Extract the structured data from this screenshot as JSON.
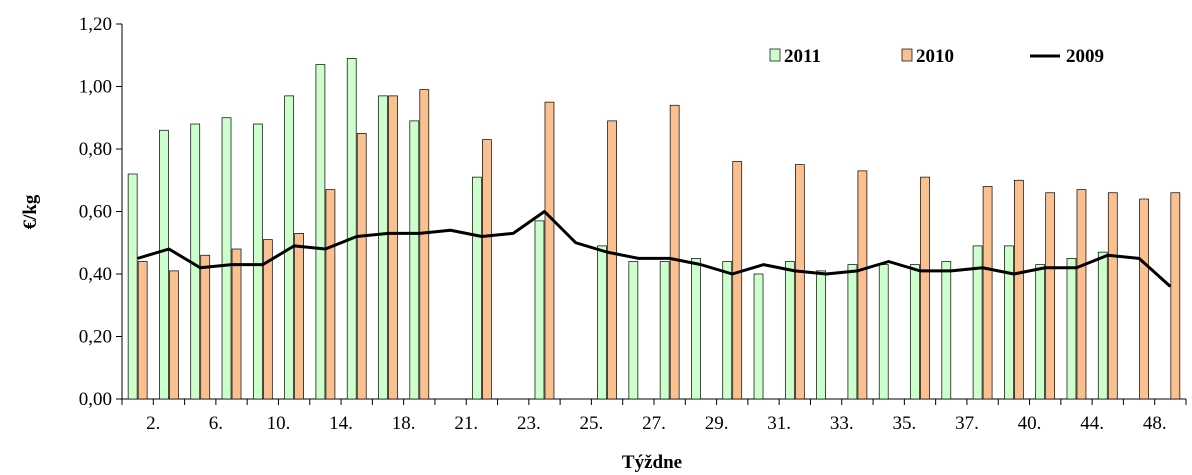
{
  "chart_data": {
    "type": "bar",
    "xlabel": "Týždne",
    "ylabel": "€/kg",
    "ylim": [
      0,
      1.2
    ],
    "yticks": [
      "0,00",
      "0,20",
      "0,40",
      "0,60",
      "0,80",
      "1,00",
      "1,20"
    ],
    "x_tick_labels": [
      "2.",
      "6.",
      "10.",
      "14.",
      "18.",
      "21.",
      "23.",
      "25.",
      "27.",
      "29.",
      "31.",
      "33.",
      "35.",
      "37.",
      "40.",
      "44.",
      "48."
    ],
    "legend_position": "top-right",
    "series": [
      {
        "name": "2011",
        "kind": "bar",
        "color": "#ccffcc",
        "values": [
          0.72,
          0.86,
          0.88,
          0.9,
          0.88,
          0.97,
          1.07,
          1.09,
          0.97,
          0.89,
          null,
          0.71,
          null,
          0.57,
          null,
          0.49,
          0.44,
          0.44,
          0.45,
          0.44,
          0.4,
          0.44,
          0.41,
          0.43,
          0.43,
          0.43,
          0.44,
          0.49,
          0.49,
          0.43,
          0.45,
          0.47,
          null,
          null
        ]
      },
      {
        "name": "2010",
        "kind": "bar",
        "color": "#fac090",
        "values": [
          0.44,
          0.41,
          0.46,
          0.48,
          0.51,
          0.53,
          0.67,
          0.85,
          0.97,
          0.99,
          null,
          0.83,
          null,
          0.95,
          null,
          0.89,
          null,
          0.94,
          null,
          0.76,
          null,
          0.75,
          null,
          0.73,
          null,
          0.71,
          null,
          0.68,
          0.7,
          0.66,
          0.67,
          0.66,
          0.64,
          0.66
        ]
      },
      {
        "name": "2009",
        "kind": "line",
        "color": "#000000",
        "values": [
          0.45,
          0.48,
          0.42,
          0.43,
          0.43,
          0.49,
          0.48,
          0.52,
          0.53,
          0.53,
          0.54,
          0.52,
          0.53,
          0.6,
          0.5,
          0.47,
          0.45,
          0.45,
          0.43,
          0.4,
          0.43,
          0.41,
          0.4,
          0.41,
          0.44,
          0.41,
          0.41,
          0.42,
          0.4,
          0.42,
          0.42,
          0.46,
          0.45,
          0.36
        ]
      }
    ]
  }
}
